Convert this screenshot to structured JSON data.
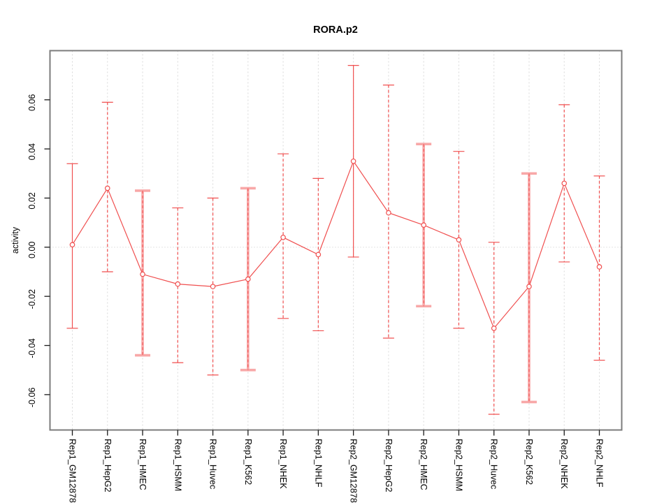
{
  "chart_data": {
    "type": "line",
    "title": "RORA.p2",
    "xlabel": "",
    "ylabel": "activity",
    "ylim": [
      -0.0744,
      0.08
    ],
    "yticks": [
      -0.06,
      -0.04,
      -0.02,
      0,
      0.02,
      0.04,
      0.06
    ],
    "ytick_labels": [
      "-0.06",
      "-0.04",
      "-0.02",
      "0.00",
      "0.02",
      "0.04",
      "0.06"
    ],
    "grid": "vertical dotted gridline at every category; dotted horizontal line at y=0; full box border; no legend",
    "marker": "open-circle",
    "categories": [
      "Rep1_GM12878",
      "Rep1_HepG2",
      "Rep1_HMEC",
      "Rep1_HSMM",
      "Rep1_Huvec",
      "Rep1_K562",
      "Rep1_NHEK",
      "Rep1_NHLF",
      "Rep2_GM12878",
      "Rep2_HepG2",
      "Rep2_HMEC",
      "Rep2_HSMM",
      "Rep2_Huvec",
      "Rep2_K562",
      "Rep2_NHEK",
      "Rep2_NHLF"
    ],
    "series": [
      {
        "name": "activity",
        "values": [
          0.001,
          0.024,
          -0.011,
          -0.015,
          -0.016,
          -0.013,
          0.004,
          -0.003,
          0.035,
          0.014,
          0.009,
          0.003,
          -0.033,
          -0.016,
          0.026,
          -0.008
        ],
        "error_low": [
          -0.033,
          -0.01,
          -0.044,
          -0.047,
          -0.052,
          -0.05,
          -0.029,
          -0.034,
          -0.004,
          -0.037,
          -0.024,
          -0.033,
          -0.068,
          -0.063,
          -0.006,
          -0.046
        ],
        "error_high": [
          0.034,
          0.059,
          0.023,
          0.016,
          0.02,
          0.024,
          0.038,
          0.028,
          0.074,
          0.066,
          0.042,
          0.039,
          0.002,
          0.03,
          0.058,
          0.029
        ]
      }
    ],
    "point_bar_styles": [
      "solid",
      "dashed",
      "thick",
      "dashed",
      "dashed",
      "thick",
      "dashed",
      "dashed",
      "solid",
      "dashed",
      "thick",
      "dashed",
      "dashed",
      "thick",
      "dashed",
      "dashed"
    ],
    "colors": {
      "line": "#f04f4f",
      "marker": "#f04f4f",
      "error_bar": "#f04f4f",
      "error_bar_thick": "#f8a8a8",
      "grid": "#d9d9d9",
      "zero_line": "#c9c9c9",
      "border": "#7c7c7c",
      "tick": "#1a1a1a",
      "text": "#000000",
      "background": "#ffffff"
    }
  }
}
